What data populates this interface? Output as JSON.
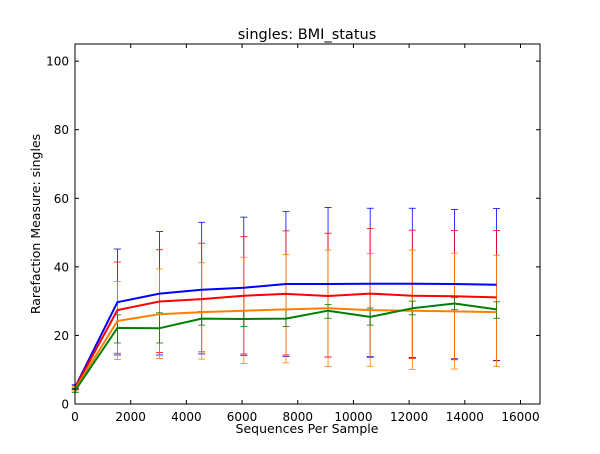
{
  "chart_data": {
    "type": "line",
    "title": "singles: BMI_status",
    "xlabel": "Sequences Per Sample",
    "ylabel": "Rarefaction Measure: singles",
    "xlim": [
      0,
      16700
    ],
    "ylim": [
      0,
      105
    ],
    "x_ticks": [
      0,
      2000,
      4000,
      6000,
      8000,
      10000,
      12000,
      14000,
      16000
    ],
    "y_ticks": [
      0,
      20,
      40,
      60,
      80,
      100
    ],
    "x_tick_labels": [
      "0",
      "2000",
      "4000",
      "6000",
      "8000",
      "10000",
      "12000",
      "14000",
      "16000"
    ],
    "y_tick_labels": [
      "0",
      "20",
      "40",
      "60",
      "80",
      "100"
    ],
    "grid": false,
    "legend": "none",
    "x": [
      10,
      1523,
      3036,
      4549,
      6062,
      7575,
      9088,
      10601,
      12114,
      13627,
      15140
    ],
    "series": [
      {
        "color": "#0000ff",
        "values": [
          5.0,
          29.7,
          32.2,
          33.3,
          33.9,
          35.0,
          35.0,
          35.1,
          35.1,
          35.0,
          34.8
        ],
        "upper": [
          5.6,
          45.2,
          50.3,
          53.0,
          54.5,
          56.1,
          57.3,
          57.1,
          57.1,
          56.7,
          57.0
        ],
        "lower": [
          4.4,
          14.3,
          14.3,
          14.6,
          14.2,
          13.9,
          13.7,
          13.8,
          13.6,
          13.2,
          12.7
        ]
      },
      {
        "color": "#ff0000",
        "values": [
          4.8,
          27.4,
          29.9,
          30.6,
          31.6,
          32.1,
          31.5,
          32.2,
          31.6,
          31.4,
          31.1
        ],
        "upper": [
          5.4,
          41.4,
          45.0,
          46.9,
          48.8,
          50.5,
          49.8,
          51.2,
          50.7,
          50.6,
          50.6
        ],
        "lower": [
          4.2,
          14.8,
          15.0,
          15.2,
          14.6,
          14.3,
          13.7,
          13.6,
          13.3,
          12.9,
          12.6
        ]
      },
      {
        "color": "#ff7f00",
        "values": [
          4.4,
          24.2,
          26.2,
          26.8,
          27.2,
          27.6,
          27.9,
          27.4,
          27.2,
          27.0,
          26.8
        ],
        "upper": [
          5.0,
          35.7,
          39.4,
          41.2,
          42.8,
          43.6,
          44.9,
          43.9,
          44.9,
          44.0,
          43.4
        ],
        "lower": [
          3.8,
          13.0,
          13.3,
          13.1,
          11.8,
          12.0,
          10.9,
          11.0,
          10.1,
          10.2,
          10.9
        ]
      },
      {
        "color": "#008000",
        "values": [
          4.0,
          22.2,
          22.1,
          24.9,
          24.8,
          24.9,
          27.2,
          25.4,
          27.9,
          29.3,
          27.6
        ],
        "upper": [
          4.6,
          26.0,
          26.6,
          27.0,
          27.2,
          27.6,
          29.0,
          28.0,
          30.0,
          31.0,
          29.8
        ],
        "lower": [
          3.4,
          17.8,
          17.8,
          23.0,
          22.6,
          22.6,
          25.0,
          23.0,
          26.0,
          27.5,
          25.0
        ]
      }
    ]
  }
}
